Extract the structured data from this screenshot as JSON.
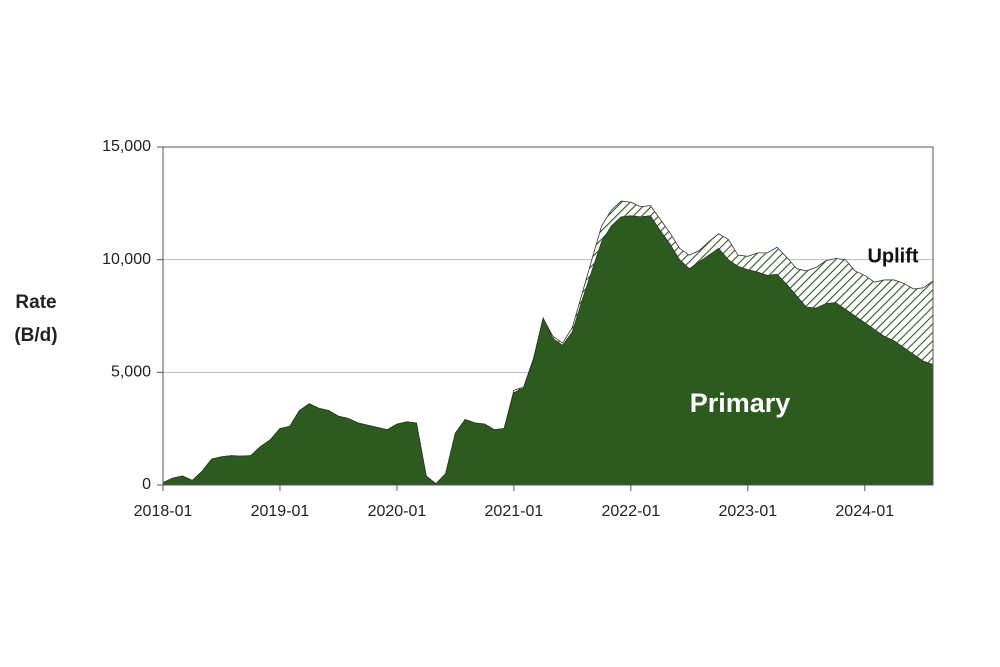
{
  "chart_data": {
    "type": "stacked_area",
    "ylabel": [
      "Rate",
      "(B/d)"
    ],
    "x": [
      "2018-01",
      "2018-02",
      "2018-03",
      "2018-04",
      "2018-05",
      "2018-06",
      "2018-07",
      "2018-08",
      "2018-09",
      "2018-10",
      "2018-11",
      "2018-12",
      "2019-01",
      "2019-02",
      "2019-03",
      "2019-04",
      "2019-05",
      "2019-06",
      "2019-07",
      "2019-08",
      "2019-09",
      "2019-10",
      "2019-11",
      "2019-12",
      "2020-01",
      "2020-02",
      "2020-03",
      "2020-04",
      "2020-05",
      "2020-06",
      "2020-07",
      "2020-08",
      "2020-09",
      "2020-10",
      "2020-11",
      "2020-12",
      "2021-01",
      "2021-02",
      "2021-03",
      "2021-04",
      "2021-05",
      "2021-06",
      "2021-07",
      "2021-08",
      "2021-09",
      "2021-10",
      "2021-11",
      "2021-12",
      "2022-01",
      "2022-02",
      "2022-03",
      "2022-04",
      "2022-05",
      "2022-06",
      "2022-07",
      "2022-08",
      "2022-09",
      "2022-10",
      "2022-11",
      "2022-12",
      "2023-01",
      "2023-02",
      "2023-03",
      "2023-04",
      "2023-05",
      "2023-06",
      "2023-07",
      "2023-08",
      "2023-09",
      "2023-10",
      "2023-11",
      "2023-12",
      "2024-01",
      "2024-02",
      "2024-03",
      "2024-04",
      "2024-05",
      "2024-06",
      "2024-07",
      "2024-08"
    ],
    "xticks": [
      "2018-01",
      "2019-01",
      "2020-01",
      "2021-01",
      "2022-01",
      "2023-01",
      "2024-01"
    ],
    "series": [
      {
        "name": "Primary",
        "color": "#2d5a1f",
        "values": [
          100,
          300,
          400,
          200,
          600,
          1150,
          1250,
          1300,
          1280,
          1300,
          1700,
          2000,
          2500,
          2600,
          3300,
          3600,
          3400,
          3300,
          3050,
          2950,
          2750,
          2650,
          2550,
          2450,
          2700,
          2800,
          2750,
          400,
          50,
          500,
          2300,
          2900,
          2750,
          2700,
          2450,
          2500,
          4100,
          4300,
          5500,
          7400,
          6500,
          6200,
          6800,
          8200,
          9500,
          10800,
          11500,
          11900,
          11950,
          11900,
          11950,
          11300,
          10700,
          10000,
          9600,
          9900,
          10200,
          10500,
          10000,
          9700,
          9550,
          9450,
          9300,
          9350,
          8900,
          8400,
          7900,
          7850,
          8050,
          8100,
          7800,
          7500,
          7200,
          6900,
          6600,
          6400,
          6100,
          5800,
          5500,
          5350
        ]
      },
      {
        "name": "Uplift",
        "color": "#2d5a1f",
        "values": [
          0,
          0,
          0,
          0,
          0,
          0,
          0,
          0,
          0,
          0,
          0,
          0,
          0,
          0,
          0,
          0,
          0,
          0,
          0,
          0,
          0,
          0,
          0,
          0,
          0,
          0,
          0,
          0,
          0,
          0,
          0,
          0,
          0,
          0,
          0,
          0,
          100,
          50,
          100,
          0,
          100,
          100,
          200,
          300,
          500,
          700,
          700,
          700,
          600,
          450,
          450,
          500,
          500,
          500,
          600,
          500,
          600,
          650,
          900,
          500,
          600,
          850,
          1000,
          1200,
          1200,
          1200,
          1600,
          1800,
          1900,
          1950,
          2200,
          2000,
          2100,
          2100,
          2500,
          2700,
          2850,
          2900,
          3250,
          3700
        ]
      }
    ],
    "ylim": [
      0,
      15000
    ],
    "yticks": [
      0,
      {
        "value": 5000,
        "label": "5,000"
      },
      {
        "value": 10000,
        "label": "10,000"
      },
      {
        "value": 15000,
        "label": "15,000"
      }
    ],
    "grid": true
  }
}
